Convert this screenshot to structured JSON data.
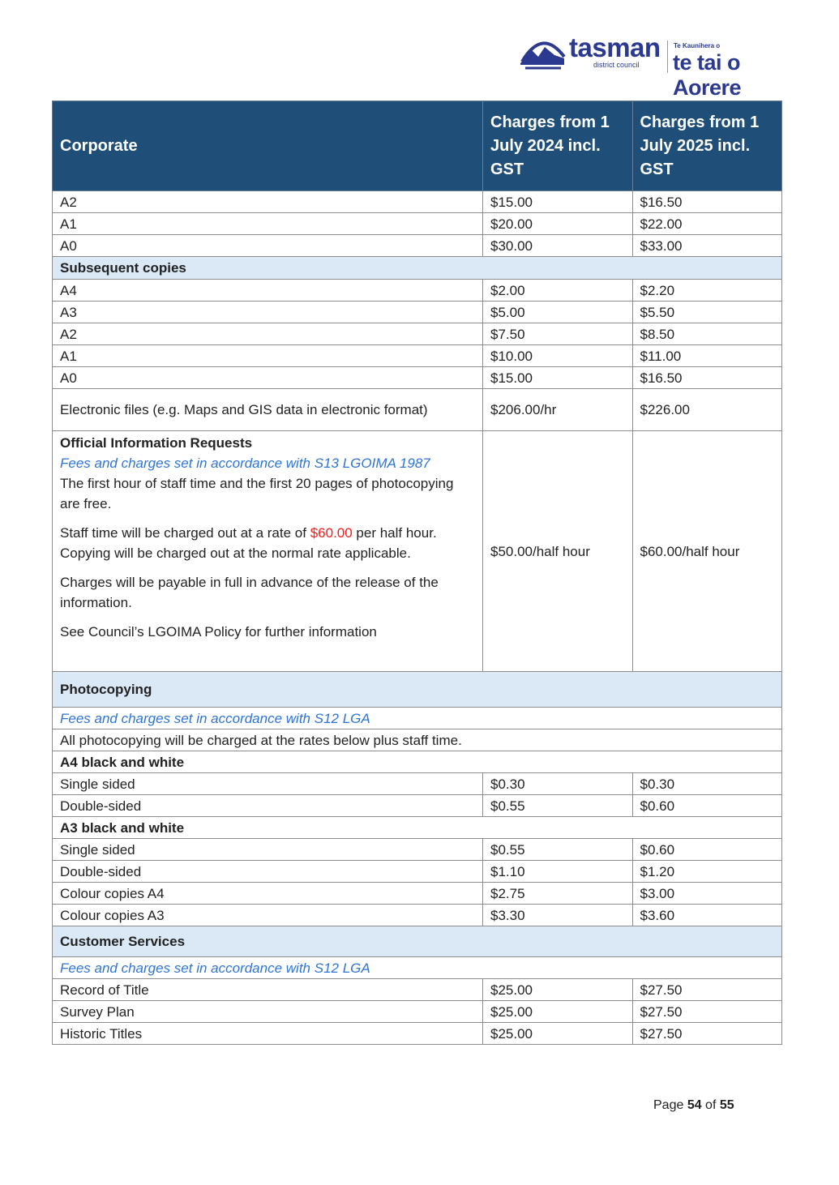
{
  "logo": {
    "name": "tasman",
    "sub": "district council",
    "maori_small": "Te Kaunihera o",
    "maori": "te tai o Aorere",
    "color": "#2b3990"
  },
  "header": {
    "col1": "Corporate",
    "col2": "Charges from 1 July 2024 incl. GST",
    "col3": "Charges from 1 July 2025 incl. GST",
    "bg": "#1f4e79"
  },
  "rows": [
    {
      "type": "item",
      "label": "A2",
      "v1": "$15.00",
      "v2": "$16.50",
      "h": 27
    },
    {
      "type": "item",
      "label": "A1",
      "v1": "$20.00",
      "v2": "$22.00",
      "h": 27
    },
    {
      "type": "item",
      "label": "A0",
      "v1": "$30.00",
      "v2": "$33.00",
      "h": 27
    },
    {
      "type": "section",
      "label": "Subsequent copies",
      "h": 28
    },
    {
      "type": "item",
      "label": "A4",
      "v1": "$2.00",
      "v2": "$2.20",
      "h": 27
    },
    {
      "type": "item",
      "label": "A3",
      "v1": "$5.00",
      "v2": "$5.50",
      "h": 27
    },
    {
      "type": "item",
      "label": "A2",
      "v1": "$7.50",
      "v2": "$8.50",
      "h": 27
    },
    {
      "type": "item",
      "label": "A1",
      "v1": "$10.00",
      "v2": "$11.00",
      "h": 27
    },
    {
      "type": "item",
      "label": "A0",
      "v1": "$15.00",
      "v2": "$16.50",
      "h": 27
    },
    {
      "type": "item",
      "label": "Electronic files (e.g. Maps and GIS data in electronic format)",
      "v1": "$206.00/hr",
      "v2": "$226.00",
      "h": 52
    },
    {
      "type": "oir",
      "h": 297,
      "v1": "$50.00/half hour",
      "v2": "$60.00/half hour",
      "title": "Official Information Requests",
      "link": "Fees and charges set in accordance with S13 LGOIMA 1987",
      "p1": "The first hour of staff time and the first 20 pages of photocopying are free.",
      "p2a": "Staff time will be charged out at a rate of ",
      "p2red": "$60.00",
      "p2b": " per half hour. Copying will be charged out at the normal rate applicable.",
      "p3": "Charges will be payable in full in advance of the release of the information.",
      "p4": "See Council’s LGOIMA Policy for further information"
    },
    {
      "type": "section",
      "label": "Photocopying",
      "h": 44
    },
    {
      "type": "link",
      "label": "Fees and charges set in accordance with S12 LGA",
      "h": 27
    },
    {
      "type": "note",
      "label": "All photocopying will be charged at the rates below plus staff time.",
      "h": 27
    },
    {
      "type": "sub",
      "label": "A4 black and white",
      "h": 27
    },
    {
      "type": "item",
      "label": "Single sided",
      "v1": "$0.30",
      "v2": "$0.30",
      "h": 27
    },
    {
      "type": "item",
      "label": "Double-sided",
      "v1": "$0.55",
      "v2": "$0.60",
      "h": 27
    },
    {
      "type": "sub",
      "label": "A3 black and white",
      "h": 27
    },
    {
      "type": "item",
      "label": "Single sided",
      "v1": "$0.55",
      "v2": "$0.60",
      "h": 27
    },
    {
      "type": "item",
      "label": "Double-sided",
      "v1": "$1.10",
      "v2": "$1.20",
      "h": 27
    },
    {
      "type": "item",
      "label": "Colour copies A4",
      "v1": "$2.75",
      "v2": "$3.00",
      "h": 27
    },
    {
      "type": "item",
      "label": "Colour copies A3",
      "v1": "$3.30",
      "v2": "$3.60",
      "h": 27
    },
    {
      "type": "section",
      "label": "Customer Services",
      "h": 38
    },
    {
      "type": "link",
      "label": "Fees and charges set in accordance with S12 LGA",
      "h": 27
    },
    {
      "type": "item",
      "label": "Record of Title",
      "v1": "$25.00",
      "v2": "$27.50",
      "h": 27
    },
    {
      "type": "item",
      "label": "Survey Plan",
      "v1": "$25.00",
      "v2": "$27.50",
      "h": 27
    },
    {
      "type": "item",
      "label": "Historic Titles",
      "v1": "$25.00",
      "v2": "$27.50",
      "h": 27
    }
  ],
  "footer": {
    "prefix": "Page ",
    "page": "54",
    "mid": " of ",
    "total": "55"
  }
}
